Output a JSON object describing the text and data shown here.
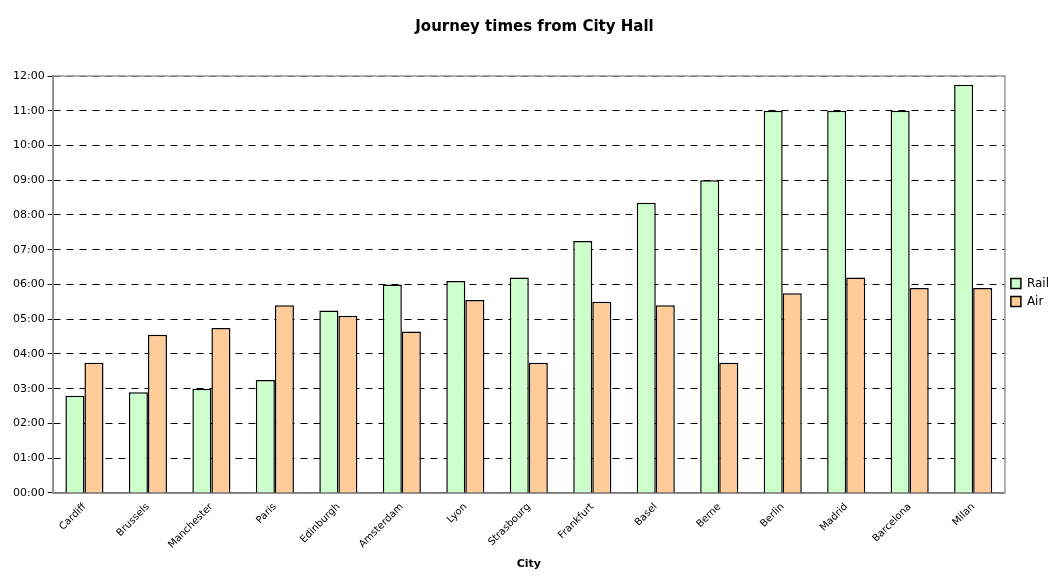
{
  "chart_data": {
    "type": "bar",
    "title": "Journey times from City Hall",
    "xlabel": "City",
    "categories": [
      "Cardiff",
      "Brussels",
      "Manchester",
      "Paris",
      "Edinburgh",
      "Amsterdam",
      "Lyon",
      "Strasbourg",
      "Frankfurt",
      "Basel",
      "Berne",
      "Berlin",
      "Madrid",
      "Barcelona",
      "Milan"
    ],
    "series": [
      {
        "name": "Rail",
        "color": "#ccffcc",
        "values": [
          2.8,
          2.9,
          3,
          3.25,
          5.25,
          6,
          6.1,
          6.2,
          7.25,
          8.35,
          9,
          11,
          11,
          11,
          11.75
        ]
      },
      {
        "name": "Air",
        "color": "#ffcc99",
        "values": [
          3.75,
          4.55,
          4.75,
          5.4,
          5.1,
          4.65,
          5.55,
          3.75,
          5.5,
          5.4,
          3.75,
          5.75,
          6.2,
          5.9,
          5.9
        ]
      }
    ],
    "ylim": [
      0,
      12
    ],
    "yticks": [
      {
        "value": 0,
        "label": "00:00"
      },
      {
        "value": 1,
        "label": "01:00"
      },
      {
        "value": 2,
        "label": "02:00"
      },
      {
        "value": 3,
        "label": "03:00"
      },
      {
        "value": 4,
        "label": "04:00"
      },
      {
        "value": 5,
        "label": "05:00"
      },
      {
        "value": 6,
        "label": "06:00"
      },
      {
        "value": 7,
        "label": "07:00"
      },
      {
        "value": 8,
        "label": "08:00"
      },
      {
        "value": 9,
        "label": "09:00"
      },
      {
        "value": 10,
        "label": "10:00"
      },
      {
        "value": 11,
        "label": "11:00"
      },
      {
        "value": 12,
        "label": "12:00"
      }
    ],
    "grid": "y",
    "legend": "right"
  }
}
